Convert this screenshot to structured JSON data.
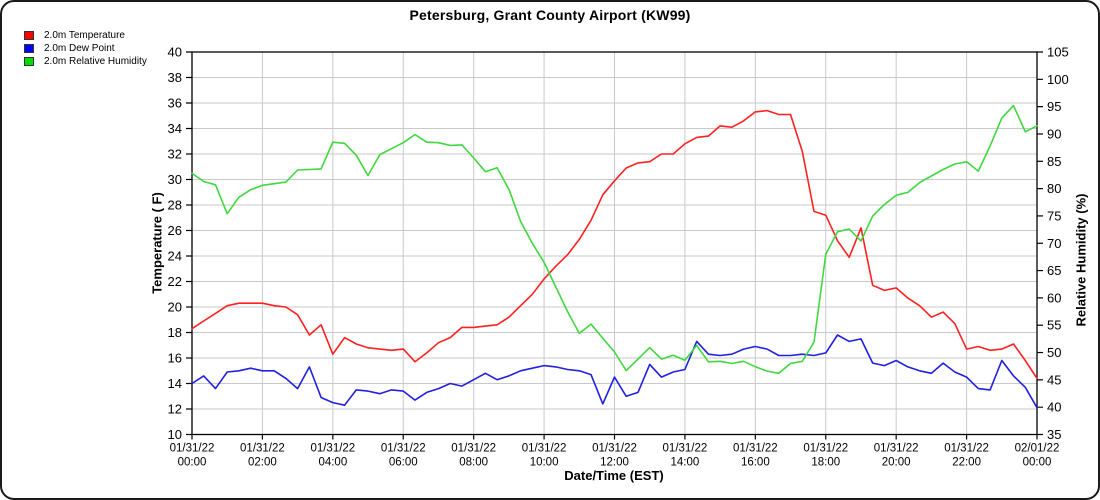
{
  "title": "Petersburg, Grant County Airport (KW99)",
  "legend": {
    "items": [
      {
        "label": "2.0m Temperature",
        "color": "#ff0000"
      },
      {
        "label": "2.0m Dew Point",
        "color": "#0000ff"
      },
      {
        "label": "2.0m Relative Humidity",
        "color": "#00dd00"
      }
    ]
  },
  "chart_data": {
    "type": "line",
    "title": "Petersburg, Grant County Airport (KW99)",
    "grid": true,
    "legend_position": "top-left",
    "sample_interval_minutes": 20,
    "x_axis": {
      "label": "Date/Time (EST)",
      "tick_labels": [
        {
          "date": "01/31/22",
          "time": "00:00"
        },
        {
          "date": "01/31/22",
          "time": "02:00"
        },
        {
          "date": "01/31/22",
          "time": "04:00"
        },
        {
          "date": "01/31/22",
          "time": "06:00"
        },
        {
          "date": "01/31/22",
          "time": "08:00"
        },
        {
          "date": "01/31/22",
          "time": "10:00"
        },
        {
          "date": "01/31/22",
          "time": "12:00"
        },
        {
          "date": "01/31/22",
          "time": "14:00"
        },
        {
          "date": "01/31/22",
          "time": "16:00"
        },
        {
          "date": "01/31/22",
          "time": "18:00"
        },
        {
          "date": "01/31/22",
          "time": "20:00"
        },
        {
          "date": "01/31/22",
          "time": "22:00"
        },
        {
          "date": "02/01/22",
          "time": "00:00"
        }
      ]
    },
    "y_left": {
      "label": "Temperature ( F)",
      "min": 10,
      "max": 40,
      "tick_step": 2,
      "ticks": [
        40,
        38,
        36,
        34,
        32,
        30,
        28,
        26,
        24,
        22,
        20,
        18,
        16,
        14,
        12,
        10
      ]
    },
    "y_right": {
      "label": "Relative Humidity (%)",
      "min": 35,
      "max": 105,
      "tick_step": 5,
      "ticks": [
        105,
        100,
        95,
        90,
        85,
        80,
        75,
        70,
        65,
        60,
        55,
        50,
        45,
        40,
        35
      ]
    },
    "series": [
      {
        "name": "2.0m Temperature",
        "axis": "left",
        "color": "#ff2020",
        "values": [
          18.3,
          18.9,
          19.5,
          20.1,
          20.3,
          20.3,
          20.3,
          20.1,
          20.0,
          19.4,
          17.8,
          18.6,
          16.3,
          17.6,
          17.1,
          16.8,
          16.7,
          16.6,
          16.7,
          15.7,
          16.4,
          17.2,
          17.6,
          18.4,
          18.4,
          18.5,
          18.6,
          19.2,
          20.1,
          21.0,
          22.2,
          23.2,
          24.1,
          25.3,
          26.8,
          28.8,
          29.9,
          30.9,
          31.3,
          31.4,
          32.0,
          32.0,
          32.8,
          33.3,
          33.4,
          34.2,
          34.1,
          34.6,
          35.3,
          35.4,
          35.1,
          35.1,
          32.2,
          27.5,
          27.2,
          25.2,
          23.9,
          26.2,
          21.7,
          21.3,
          21.5,
          20.7,
          20.1,
          19.2,
          19.6,
          18.7,
          16.7,
          16.9,
          16.6,
          16.7,
          17.1,
          15.8,
          14.4
        ]
      },
      {
        "name": "2.0m Dew Point",
        "axis": "left",
        "color": "#2020e0",
        "values": [
          14.0,
          14.6,
          13.6,
          14.9,
          15.0,
          15.2,
          15.0,
          15.0,
          14.4,
          13.6,
          15.3,
          12.9,
          12.5,
          12.3,
          13.5,
          13.4,
          13.2,
          13.5,
          13.4,
          12.7,
          13.3,
          13.6,
          14.0,
          13.8,
          14.3,
          14.8,
          14.3,
          14.6,
          15.0,
          15.2,
          15.4,
          15.3,
          15.1,
          15.0,
          14.7,
          12.4,
          14.5,
          13.0,
          13.3,
          15.5,
          14.5,
          14.9,
          15.1,
          17.3,
          16.3,
          16.2,
          16.3,
          16.7,
          16.9,
          16.7,
          16.2,
          16.2,
          16.3,
          16.2,
          16.4,
          17.8,
          17.3,
          17.5,
          15.6,
          15.4,
          15.8,
          15.3,
          15.0,
          14.8,
          15.6,
          14.9,
          14.5,
          13.6,
          13.5,
          15.8,
          14.6,
          13.7,
          12.1
        ]
      },
      {
        "name": "2.0m Relative Humidity",
        "axis": "right",
        "color": "#40d840",
        "values": [
          82.8,
          81.3,
          80.7,
          75.4,
          78.4,
          79.8,
          80.6,
          80.9,
          81.2,
          83.4,
          83.5,
          83.6,
          88.5,
          88.3,
          86.1,
          82.4,
          86.2,
          87.3,
          88.4,
          89.9,
          88.5,
          88.4,
          87.9,
          88.0,
          85.6,
          83.1,
          83.8,
          79.9,
          74.0,
          70.0,
          66.5,
          62.0,
          57.5,
          53.5,
          55.2,
          52.6,
          50.1,
          46.7,
          48.8,
          50.9,
          48.8,
          49.5,
          48.6,
          51.3,
          48.3,
          48.4,
          48.0,
          48.4,
          47.4,
          46.6,
          46.2,
          48.0,
          48.4,
          51.9,
          68.0,
          72.1,
          72.6,
          70.4,
          75.0,
          77.1,
          78.8,
          79.3,
          81.1,
          82.3,
          83.5,
          84.5,
          84.9,
          83.2,
          87.8,
          92.9,
          95.2,
          90.4,
          91.5
        ]
      }
    ]
  }
}
